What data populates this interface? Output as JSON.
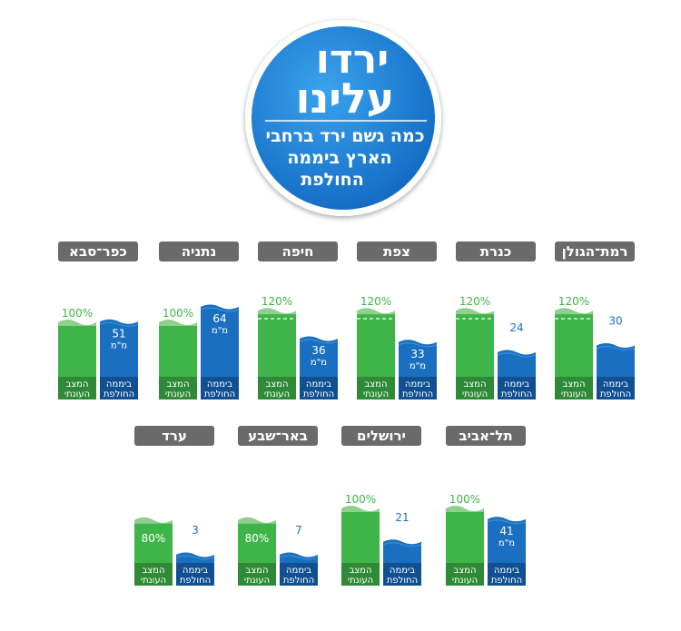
{
  "header": {
    "title_line1": "ירדו",
    "title_line2": "עלינו",
    "subtitle_line1": "כמה גשם ירד ברחבי",
    "subtitle_line2": "הארץ ביממה",
    "subtitle_line3": "החולפת"
  },
  "labels": {
    "normal_line1": "המצב",
    "normal_line2": "העונתי",
    "day_line1": "ביממה",
    "day_line2": "החולפת",
    "unit": "מ\"מ"
  },
  "colors": {
    "green": "#3fb549",
    "green_light": "#8fd08e",
    "blue": "#1a6fc0",
    "blue_dark": "#0f4f92",
    "label_bg": "#6a6a6a",
    "badge": "#1a82d6"
  },
  "chart_data": {
    "type": "bar",
    "categories": [
      "רמת־הגולן",
      "כנרת",
      "צפת",
      "חיפה",
      "נתניה",
      "כפר־סבא",
      "תל־אביב",
      "ירושלים",
      "באר־שבע",
      "ערד"
    ],
    "series": [
      {
        "name": "המצב העונתי",
        "values": [
          "120%",
          "120%",
          "120%",
          "120%",
          "100%",
          "100%",
          "100%",
          "100%",
          "80%",
          "80%"
        ]
      },
      {
        "name": "ביממה החולפת",
        "values": [
          30,
          24,
          33,
          36,
          64,
          51,
          41,
          21,
          7,
          3
        ]
      }
    ]
  }
}
